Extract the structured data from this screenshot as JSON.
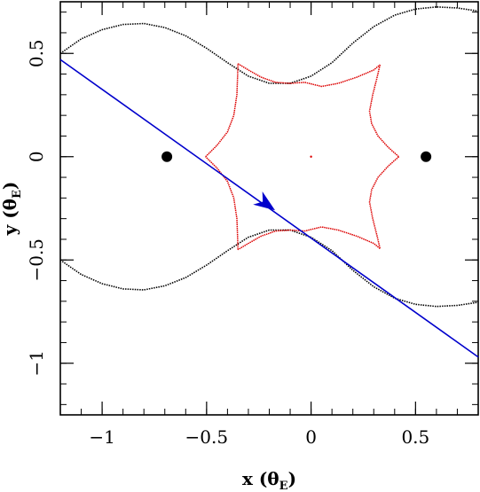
{
  "chart_data": {
    "type": "scatter",
    "title": "",
    "xlabel": {
      "text": "x (θ",
      "sub": "E",
      "close": ")"
    },
    "ylabel": {
      "text": "y (θ",
      "sub": "E",
      "close": ")"
    },
    "xlim": [
      -1.2,
      0.8
    ],
    "ylim": [
      -1.25,
      0.75
    ],
    "x_ticks": [
      {
        "value": -1,
        "label": "−1"
      },
      {
        "value": -0.5,
        "label": "−0.5"
      },
      {
        "value": 0,
        "label": "0"
      },
      {
        "value": 0.5,
        "label": "0.5"
      }
    ],
    "y_ticks": [
      {
        "value": 0.5,
        "label": "0.5"
      },
      {
        "value": 0,
        "label": "0"
      },
      {
        "value": -0.5,
        "label": "−0.5"
      },
      {
        "value": -1,
        "label": "−1"
      }
    ],
    "x_minor_step": 0.1,
    "y_minor_step": 0.1,
    "grid": false,
    "lens_positions": [
      {
        "x": -0.69,
        "y": 0.0
      },
      {
        "x": 0.55,
        "y": 0.0
      }
    ],
    "caustic_center_dot": {
      "x": 0.0,
      "y": 0.0
    },
    "caustic": {
      "color": "#dd0000",
      "curves": [
        [
          [
            -0.505,
            0.0
          ],
          [
            -0.45,
            0.055
          ],
          [
            -0.4,
            0.12
          ],
          [
            -0.37,
            0.2
          ],
          [
            -0.355,
            0.3
          ],
          [
            -0.352,
            0.38
          ],
          [
            -0.35,
            0.45
          ]
        ],
        [
          [
            -0.35,
            0.45
          ],
          [
            -0.3,
            0.42
          ],
          [
            -0.24,
            0.385
          ],
          [
            -0.17,
            0.36
          ],
          [
            -0.1,
            0.355
          ],
          [
            -0.03,
            0.36
          ],
          [
            0.05,
            0.34
          ],
          [
            0.13,
            0.355
          ],
          [
            0.22,
            0.385
          ],
          [
            0.3,
            0.42
          ],
          [
            0.33,
            0.445
          ]
        ],
        [
          [
            0.33,
            0.445
          ],
          [
            0.315,
            0.38
          ],
          [
            0.295,
            0.3
          ],
          [
            0.28,
            0.22
          ],
          [
            0.29,
            0.16
          ],
          [
            0.32,
            0.1
          ],
          [
            0.37,
            0.045
          ],
          [
            0.42,
            0.0
          ]
        ],
        [
          [
            0.42,
            0.0
          ],
          [
            0.37,
            -0.045
          ],
          [
            0.32,
            -0.1
          ],
          [
            0.29,
            -0.16
          ],
          [
            0.28,
            -0.22
          ],
          [
            0.295,
            -0.3
          ],
          [
            0.315,
            -0.38
          ],
          [
            0.33,
            -0.445
          ]
        ],
        [
          [
            0.33,
            -0.445
          ],
          [
            0.3,
            -0.42
          ],
          [
            0.22,
            -0.385
          ],
          [
            0.13,
            -0.355
          ],
          [
            0.05,
            -0.34
          ],
          [
            -0.03,
            -0.36
          ],
          [
            -0.1,
            -0.355
          ],
          [
            -0.17,
            -0.36
          ],
          [
            -0.24,
            -0.385
          ],
          [
            -0.3,
            -0.42
          ],
          [
            -0.35,
            -0.45
          ]
        ],
        [
          [
            -0.35,
            -0.45
          ],
          [
            -0.352,
            -0.38
          ],
          [
            -0.355,
            -0.3
          ],
          [
            -0.37,
            -0.2
          ],
          [
            -0.4,
            -0.12
          ],
          [
            -0.45,
            -0.055
          ],
          [
            -0.505,
            0.0
          ]
        ]
      ]
    },
    "critical_curve": {
      "color": "#000000",
      "curves": [
        [
          [
            -1.2,
            0.5
          ],
          [
            -1.1,
            0.57
          ],
          [
            -1.0,
            0.615
          ],
          [
            -0.9,
            0.64
          ],
          [
            -0.8,
            0.645
          ],
          [
            -0.7,
            0.625
          ],
          [
            -0.6,
            0.585
          ],
          [
            -0.5,
            0.525
          ],
          [
            -0.4,
            0.455
          ],
          [
            -0.3,
            0.39
          ],
          [
            -0.2,
            0.355
          ],
          [
            -0.1,
            0.355
          ],
          [
            0.0,
            0.39
          ],
          [
            0.1,
            0.455
          ],
          [
            0.2,
            0.55
          ],
          [
            0.3,
            0.63
          ],
          [
            0.4,
            0.685
          ],
          [
            0.5,
            0.715
          ],
          [
            0.6,
            0.725
          ],
          [
            0.7,
            0.72
          ],
          [
            0.8,
            0.705
          ]
        ],
        [
          [
            -1.2,
            -0.5
          ],
          [
            -1.1,
            -0.57
          ],
          [
            -1.0,
            -0.615
          ],
          [
            -0.9,
            -0.64
          ],
          [
            -0.8,
            -0.645
          ],
          [
            -0.7,
            -0.625
          ],
          [
            -0.6,
            -0.585
          ],
          [
            -0.5,
            -0.525
          ],
          [
            -0.4,
            -0.455
          ],
          [
            -0.3,
            -0.39
          ],
          [
            -0.2,
            -0.355
          ],
          [
            -0.1,
            -0.355
          ],
          [
            0.0,
            -0.39
          ],
          [
            0.1,
            -0.455
          ],
          [
            0.2,
            -0.55
          ],
          [
            0.3,
            -0.63
          ],
          [
            0.4,
            -0.685
          ],
          [
            0.5,
            -0.715
          ],
          [
            0.6,
            -0.725
          ],
          [
            0.7,
            -0.72
          ],
          [
            0.8,
            -0.705
          ]
        ]
      ]
    },
    "source_trajectory": {
      "color": "#0000cc",
      "start": {
        "x": -1.2,
        "y": 0.47
      },
      "end": {
        "x": 0.8,
        "y": -0.97
      },
      "arrow_at": {
        "x": -0.2,
        "y": -0.24
      }
    }
  }
}
